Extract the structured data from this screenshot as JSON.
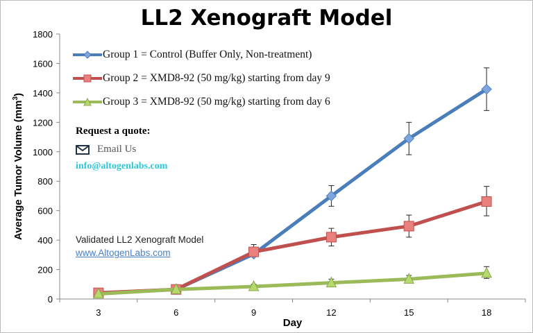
{
  "chart_data": {
    "type": "line",
    "title": "LL2 Xenograft Model",
    "xlabel": "Day",
    "ylabel": "Average Tumor Volume (mm³)",
    "ylabel_parts": {
      "main": "Average Tumor Volume (mm",
      "sup": "3",
      "close": ")"
    },
    "categories": [
      "3",
      "6",
      "9",
      "12",
      "15",
      "18"
    ],
    "ylim": [
      0,
      1800
    ],
    "yticks": [
      "0",
      "200",
      "400",
      "600",
      "800",
      "1000",
      "1200",
      "1400",
      "1600",
      "1800"
    ],
    "grid": false,
    "legend_position": "top-left",
    "series": [
      {
        "name": "Group 1 = Control (Buffer Only, Non-treatment)",
        "color": "#4a7ebb",
        "marker": "diamond",
        "values": [
          40,
          65,
          305,
          700,
          1090,
          1425
        ],
        "err_low": [
          null,
          null,
          null,
          630,
          980,
          1280
        ],
        "err_high": [
          null,
          null,
          null,
          770,
          1200,
          1570
        ]
      },
      {
        "name": "Group 2 = XMD8-92 (50 mg/kg) starting from day 9",
        "color": "#c0504d",
        "marker": "square",
        "values": [
          42,
          65,
          320,
          420,
          495,
          662
        ],
        "err_low": [
          null,
          null,
          290,
          360,
          420,
          565
        ],
        "err_high": [
          null,
          null,
          370,
          480,
          570,
          765
        ]
      },
      {
        "name": "Group 3 = XMD8-92 (50 mg/kg) starting from day 6",
        "color": "#9bbb59",
        "marker": "triangle",
        "values": [
          35,
          65,
          85,
          110,
          135,
          175
        ],
        "err_low": [
          null,
          null,
          70,
          90,
          115,
          140
        ],
        "err_high": [
          null,
          null,
          100,
          135,
          160,
          220
        ]
      }
    ]
  },
  "annotations": {
    "request_quote": "Request a quote:",
    "email_label": "Email Us",
    "email_address": "info@altogenlabs.com",
    "validated": "Validated LL2 Xenograft Model",
    "website": "www.AltogenLabs.com"
  }
}
